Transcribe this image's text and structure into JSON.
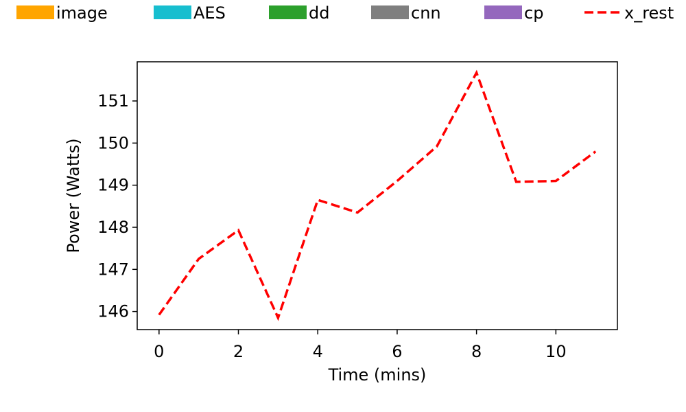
{
  "chart_data": {
    "type": "line",
    "xlabel": "Time (mins)",
    "ylabel": "Power (Watts)",
    "xlim": [
      -0.55,
      11.55
    ],
    "ylim": [
      145.57,
      151.93
    ],
    "xticks": [
      0,
      2,
      4,
      6,
      8,
      10
    ],
    "yticks": [
      146,
      147,
      148,
      149,
      150,
      151
    ],
    "grid": false,
    "legend_position": "top",
    "legend": [
      {
        "label": "image",
        "kind": "patch",
        "color": "#ffa500"
      },
      {
        "label": "AES",
        "kind": "patch",
        "color": "#17becf"
      },
      {
        "label": "dd",
        "kind": "patch",
        "color": "#2ca02c"
      },
      {
        "label": "cnn",
        "kind": "patch",
        "color": "#7f7f7f"
      },
      {
        "label": "cp",
        "kind": "patch",
        "color": "#9467bd"
      },
      {
        "label": "x_rest",
        "kind": "line",
        "color": "#ff0000",
        "dashed": true
      }
    ],
    "series": [
      {
        "name": "x_rest",
        "color": "#ff0000",
        "dashed": true,
        "x": [
          0,
          1,
          2,
          3,
          4,
          5,
          6,
          7,
          8,
          9,
          10,
          11
        ],
        "y": [
          145.92,
          147.25,
          147.93,
          145.85,
          148.65,
          148.35,
          149.1,
          149.92,
          151.67,
          149.08,
          149.1,
          149.8
        ]
      }
    ]
  }
}
